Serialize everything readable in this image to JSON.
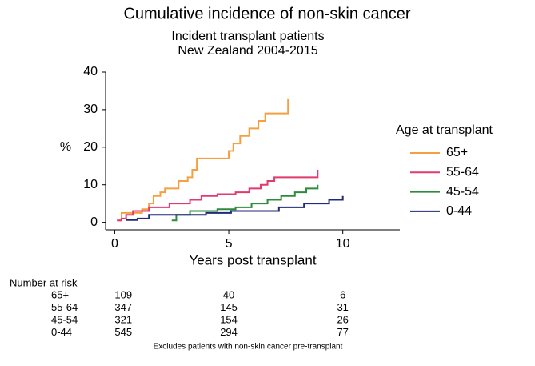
{
  "chart_data": {
    "type": "step",
    "title": "Cumulative incidence of non-skin cancer",
    "subtitle": [
      "Incident transplant patients",
      "New Zealand 2004-2015"
    ],
    "x_label": "Years post transplant",
    "y_label": "%",
    "xlim": [
      -0.4,
      12.5
    ],
    "xticks": [
      0,
      5,
      10
    ],
    "ylim": [
      -2,
      40
    ],
    "yticks": [
      0,
      10,
      20,
      30,
      40
    ],
    "legend_title": "Age at transplant",
    "legend_position": "right",
    "series": [
      {
        "name": "65+",
        "color": "#f5a040",
        "x": [
          0.1,
          0.3,
          1.2,
          1.5,
          1.7,
          2.0,
          2.2,
          2.8,
          3.2,
          3.4,
          3.6,
          5.0,
          5.2,
          5.5,
          5.9,
          6.3,
          6.6,
          7.6,
          7.6
        ],
        "values": [
          0.5,
          2.5,
          3.5,
          5,
          7,
          8,
          9,
          11,
          12,
          14,
          17,
          19,
          21,
          23,
          25,
          27,
          29,
          29,
          33
        ]
      },
      {
        "name": "55-64",
        "color": "#e03a6e",
        "x": [
          0.1,
          0.3,
          0.5,
          0.8,
          1.5,
          2.4,
          3.3,
          3.8,
          4.5,
          5.3,
          5.9,
          6.4,
          6.7,
          7.0,
          8.9,
          8.9
        ],
        "values": [
          0.5,
          1,
          2,
          3,
          4,
          5,
          6,
          7,
          7.5,
          8,
          9,
          10,
          11,
          12,
          12,
          14
        ]
      },
      {
        "name": "45-54",
        "color": "#2e8b3c",
        "x": [
          2.5,
          2.7,
          3.3,
          4.5,
          5.3,
          6.0,
          6.7,
          7.3,
          7.9,
          8.4,
          8.9,
          8.9
        ],
        "values": [
          0.5,
          2,
          3,
          3.5,
          4,
          5,
          6,
          7,
          8,
          9,
          9,
          10
        ]
      },
      {
        "name": "0-44",
        "color": "#1f2a78",
        "x": [
          0.5,
          1.0,
          1.5,
          4.0,
          5.1,
          7.2,
          8.3,
          9.4,
          10.0,
          10.0
        ],
        "values": [
          0.6,
          1,
          2,
          2.5,
          3,
          4,
          5,
          6,
          6,
          7
        ]
      }
    ],
    "risk_table": {
      "title": "Number at risk",
      "rows": [
        {
          "label": "65+",
          "values": [
            109,
            40,
            6
          ]
        },
        {
          "label": "55-64",
          "values": [
            347,
            145,
            31
          ]
        },
        {
          "label": "45-54",
          "values": [
            321,
            154,
            26
          ]
        },
        {
          "label": "0-44",
          "values": [
            545,
            294,
            77
          ]
        }
      ]
    },
    "note": "Excludes patients with non-skin cancer pre-transplant"
  }
}
